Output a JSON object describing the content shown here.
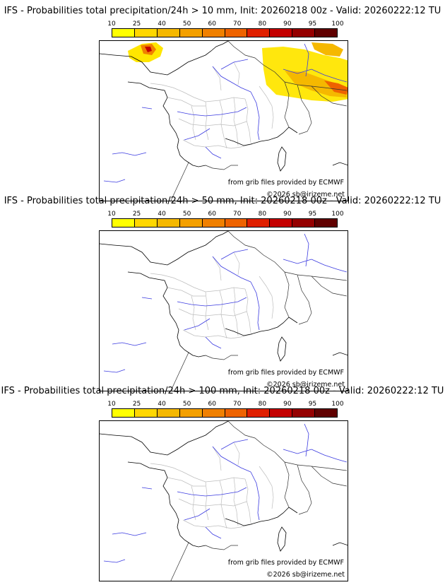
{
  "colorbar": {
    "ticks": [
      "10",
      "25",
      "40",
      "50",
      "60",
      "70",
      "80",
      "90",
      "95",
      "100"
    ],
    "colors": [
      "#ffff00",
      "#ffd700",
      "#f5b800",
      "#f4a000",
      "#f08000",
      "#ee6300",
      "#e02000",
      "#c40000",
      "#950000",
      "#600000"
    ]
  },
  "panels": [
    {
      "title": "IFS - Probabilities total precipitation/24h > 10 mm, Init: 20260218 00z - Valid: 20260222:12 TU",
      "credit_source": "from grib files provided by ECMWF",
      "credit_copy": "©2026 sb@irizeme.net",
      "has_precip": true
    },
    {
      "title": "IFS - Probabilities total precipitation/24h > 50 mm, Init: 20260218 00z - Valid: 20260222:12 TU",
      "credit_source": "from grib files provided by ECMWF",
      "credit_copy": "©2026 sb@irizeme.net",
      "has_precip": false
    },
    {
      "title": "IFS - Probabilities total precipitation/24h > 100 mm, Init: 20260218 00z - Valid: 20260222:12 TU",
      "credit_source": "from grib files provided by ECMWF",
      "credit_copy": "©2026 sb@irizeme.net",
      "has_precip": false
    }
  ]
}
